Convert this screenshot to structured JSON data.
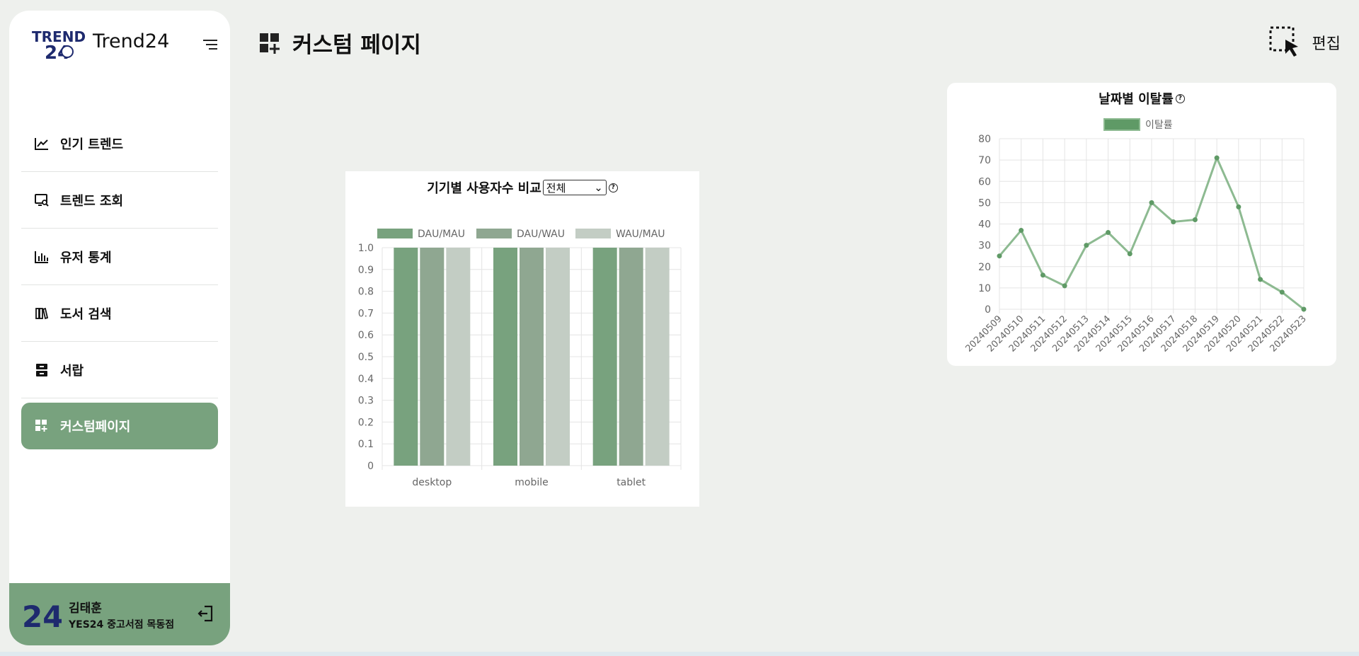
{
  "app": {
    "name": "Trend24"
  },
  "sidebar": {
    "items": [
      {
        "label": "인기 트렌드",
        "icon": "trend-line-icon"
      },
      {
        "label": "트렌드 조회",
        "icon": "monitor-search-icon"
      },
      {
        "label": "유저 통계",
        "icon": "bar-stats-icon"
      },
      {
        "label": "도서 검색",
        "icon": "books-icon"
      },
      {
        "label": "서랍",
        "icon": "drawer-icon"
      },
      {
        "label": "커스텀페이지",
        "icon": "dashboard-add-icon",
        "active": true
      }
    ]
  },
  "profile": {
    "name": "김태훈",
    "store": "YES24 중고서점 목동점"
  },
  "header": {
    "title": "커스텀 페이지",
    "edit_label": "편집"
  },
  "colors": {
    "accent": "#78a27e",
    "sidebar_bg": "#ffffff",
    "page_bg": "#eef0ed"
  },
  "chart_data": [
    {
      "type": "bar",
      "title": "기기별 사용자수 비교",
      "filter": {
        "selected": "전체"
      },
      "categories": [
        "desktop",
        "mobile",
        "tablet"
      ],
      "series": [
        {
          "name": "DAU/MAU",
          "color": "#78a27e",
          "values": [
            1.0,
            1.0,
            1.0
          ]
        },
        {
          "name": "DAU/WAU",
          "color": "#8fa791",
          "values": [
            1.0,
            1.0,
            1.0
          ]
        },
        {
          "name": "WAU/MAU",
          "color": "#c3cdc4",
          "values": [
            1.0,
            1.0,
            1.0
          ]
        }
      ],
      "ylim": [
        0,
        1.0
      ],
      "yticks": [
        "0",
        "0.1",
        "0.2",
        "0.3",
        "0.4",
        "0.5",
        "0.6",
        "0.7",
        "0.8",
        "0.9",
        "1.0"
      ],
      "grid": true,
      "legend": "top"
    },
    {
      "type": "line",
      "title": "날짜별 이탈률",
      "x": [
        "20240509",
        "20240510",
        "20240511",
        "20240512",
        "20240513",
        "20240514",
        "20240515",
        "20240516",
        "20240517",
        "20240518",
        "20240519",
        "20240520",
        "20240521",
        "20240522",
        "20240523"
      ],
      "series": [
        {
          "name": "이탈률",
          "color": "#8dba91",
          "values": [
            25,
            37,
            16,
            11,
            30,
            36,
            26,
            50,
            41,
            42,
            71,
            48,
            14,
            8,
            0
          ]
        }
      ],
      "ylim": [
        0,
        80
      ],
      "yticks": [
        "0",
        "10",
        "20",
        "30",
        "40",
        "50",
        "60",
        "70",
        "80"
      ],
      "grid": true,
      "legend": "top"
    }
  ]
}
